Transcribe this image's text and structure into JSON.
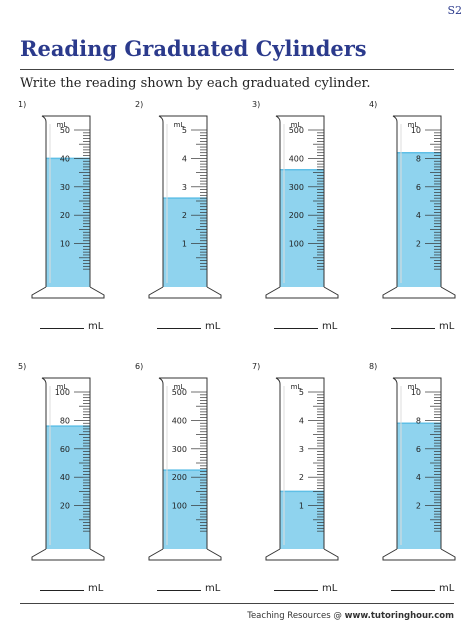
{
  "worksheet_code": "S2",
  "title": "Reading Graduated Cylinders",
  "instruction": "Write the reading shown by each graduated cylinder.",
  "footer": {
    "prefix": "Teaching Resources @ ",
    "site": "www.tutoringhour.com"
  },
  "answer_unit": "mL",
  "colors": {
    "title": "#2b3a8c",
    "liquid": "#8fd3ee",
    "liquid_surface": "#5fbfe6"
  },
  "problems": [
    {
      "number": "1)",
      "unit": "mL",
      "max": 50,
      "labels": [
        "50",
        "40",
        "30",
        "20",
        "10"
      ],
      "label_values": [
        50,
        40,
        30,
        20,
        10
      ],
      "minor_per_major": 10,
      "reading": 40
    },
    {
      "number": "2)",
      "unit": "mL",
      "max": 5,
      "labels": [
        "5",
        "4",
        "3",
        "2",
        "1"
      ],
      "label_values": [
        5,
        4,
        3,
        2,
        1
      ],
      "minor_per_major": 10,
      "reading": 2.6
    },
    {
      "number": "3)",
      "unit": "mL",
      "max": 500,
      "labels": [
        "500",
        "400",
        "300",
        "200",
        "100"
      ],
      "label_values": [
        500,
        400,
        300,
        200,
        100
      ],
      "minor_per_major": 10,
      "reading": 360
    },
    {
      "number": "4)",
      "unit": "mL",
      "max": 10,
      "labels": [
        "10",
        "8",
        "6",
        "4",
        "2"
      ],
      "label_values": [
        10,
        8,
        6,
        4,
        2
      ],
      "minor_per_major": 10,
      "reading": 8.4
    },
    {
      "number": "5)",
      "unit": "mL",
      "max": 100,
      "labels": [
        "100",
        "80",
        "60",
        "40",
        "20"
      ],
      "label_values": [
        100,
        80,
        60,
        40,
        20
      ],
      "minor_per_major": 10,
      "reading": 76
    },
    {
      "number": "6)",
      "unit": "mL",
      "max": 500,
      "labels": [
        "500",
        "400",
        "300",
        "200",
        "100"
      ],
      "label_values": [
        500,
        400,
        300,
        200,
        100
      ],
      "minor_per_major": 10,
      "reading": 225
    },
    {
      "number": "7)",
      "unit": "mL",
      "max": 5,
      "labels": [
        "5",
        "4",
        "3",
        "2",
        "1"
      ],
      "label_values": [
        5,
        4,
        3,
        2,
        1
      ],
      "minor_per_major": 10,
      "reading": 1.5
    },
    {
      "number": "8)",
      "unit": "mL",
      "max": 10,
      "labels": [
        "10",
        "8",
        "6",
        "4",
        "2"
      ],
      "label_values": [
        10,
        8,
        6,
        4,
        2
      ],
      "minor_per_major": 10,
      "reading": 7.8
    }
  ]
}
